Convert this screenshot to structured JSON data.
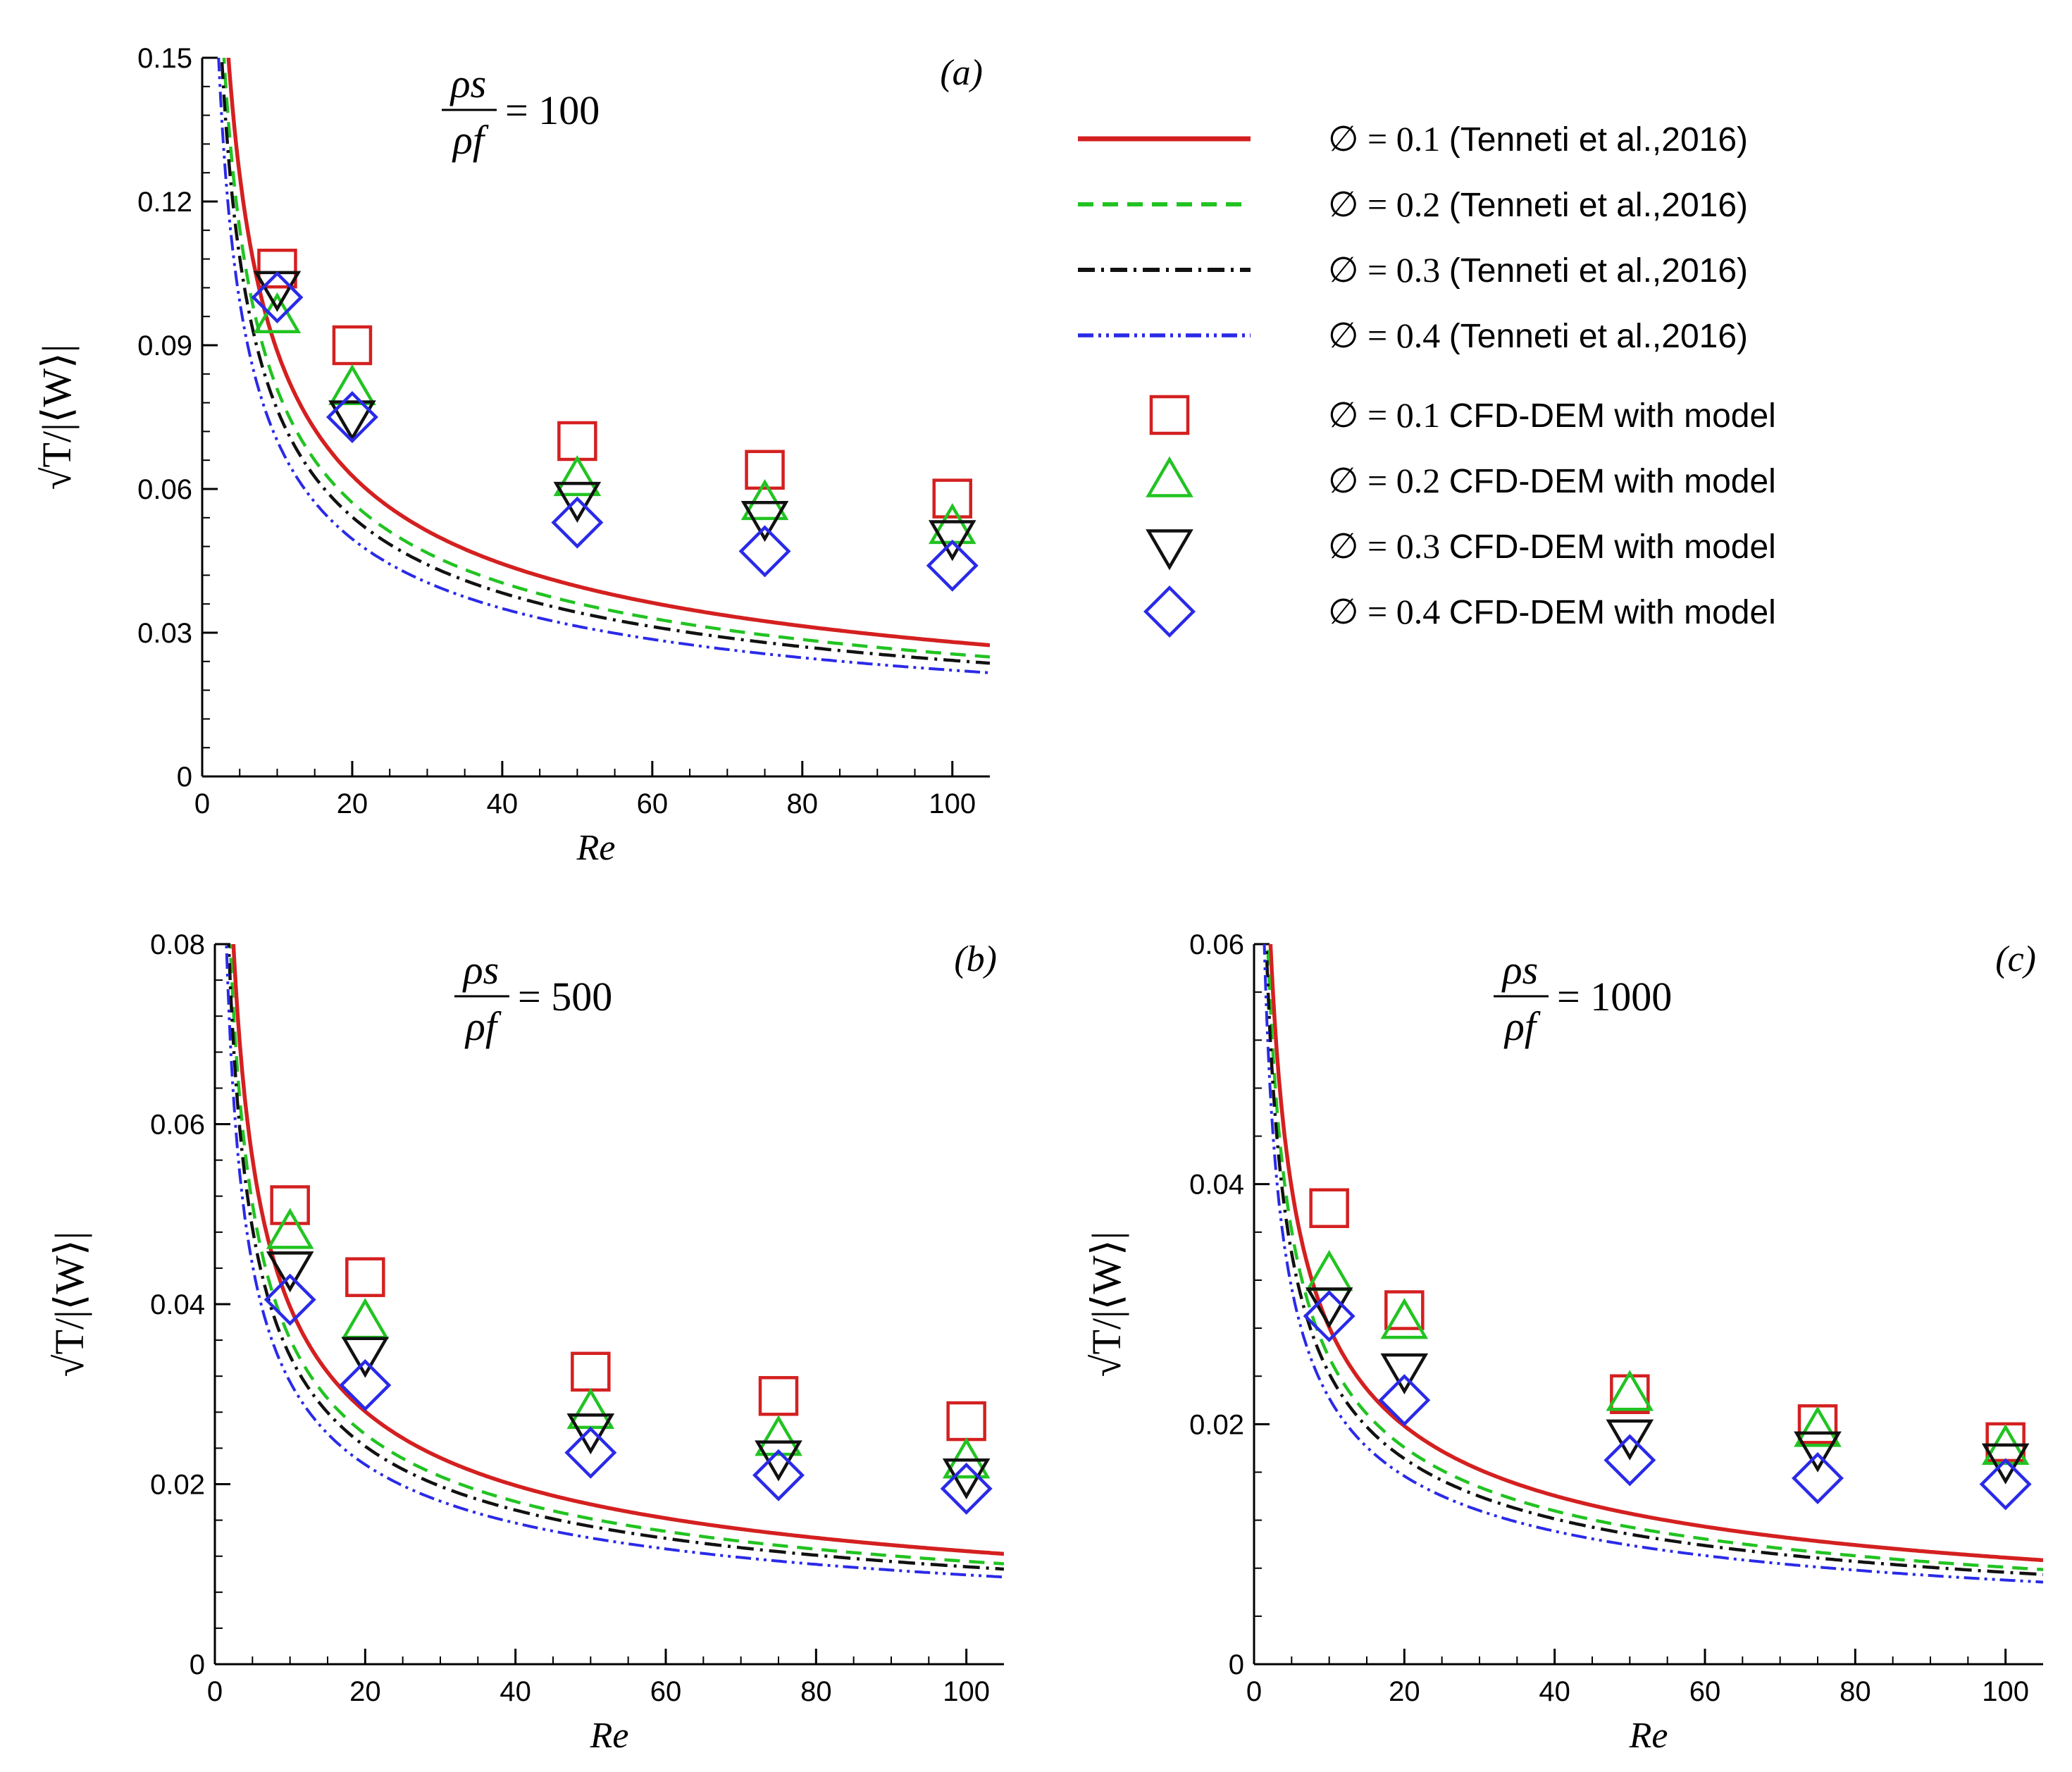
{
  "chart_data": [
    {
      "id": "a",
      "type": "line",
      "panel_label": "(a)",
      "density_ratio": {
        "numerator": "ρs",
        "denominator": "ρf",
        "value": "= 100"
      },
      "xlabel": "Re",
      "ylabel": "√T/|⟨W⟩|",
      "xlim": [
        0,
        105
      ],
      "ylim": [
        0,
        0.15
      ],
      "xticks": [
        "0",
        "20",
        "40",
        "60",
        "80",
        "100"
      ],
      "yticks": [
        "0",
        "0.03",
        "0.06",
        "0.09",
        "0.12",
        "0.15"
      ],
      "curves": [
        {
          "phi": 0.1,
          "coef": 0.2807,
          "offset": 0.0
        },
        {
          "phi": 0.2,
          "coef": 0.2556,
          "offset": 0.0
        },
        {
          "phi": 0.3,
          "coef": 0.2422,
          "offset": 0.0
        },
        {
          "phi": 0.4,
          "coef": 0.2217,
          "offset": 0.0
        }
      ],
      "x": [
        10,
        20,
        50,
        75,
        100
      ],
      "markers": [
        {
          "phi": 0.1,
          "values": [
            0.106,
            0.09,
            0.07,
            0.064,
            0.058
          ]
        },
        {
          "phi": 0.2,
          "values": [
            0.096,
            0.081,
            0.062,
            0.057,
            0.052
          ]
        },
        {
          "phi": 0.3,
          "values": [
            0.102,
            0.075,
            0.058,
            0.054,
            0.05
          ]
        },
        {
          "phi": 0.4,
          "values": [
            0.1,
            0.075,
            0.053,
            0.047,
            0.044
          ]
        }
      ]
    },
    {
      "id": "b",
      "type": "line",
      "panel_label": "(b)",
      "density_ratio": {
        "numerator": "ρs",
        "denominator": "ρf",
        "value": "= 500"
      },
      "xlabel": "Re",
      "ylabel": "√T/|⟨W⟩|",
      "xlim": [
        0,
        105
      ],
      "ylim": [
        0,
        0.08
      ],
      "xticks": [
        "0",
        "20",
        "40",
        "60",
        "80",
        "100"
      ],
      "yticks": [
        "0",
        "0.02",
        "0.04",
        "0.06",
        "0.08"
      ],
      "curves": [
        {
          "phi": 0.1,
          "coef": 0.1256,
          "offset": 0.0
        },
        {
          "phi": 0.2,
          "coef": 0.1143,
          "offset": 0.0
        },
        {
          "phi": 0.3,
          "coef": 0.1083,
          "offset": 0.0
        },
        {
          "phi": 0.4,
          "coef": 0.0992,
          "offset": 0.0
        }
      ],
      "x": [
        10,
        20,
        50,
        75,
        100
      ],
      "markers": [
        {
          "phi": 0.1,
          "values": [
            0.051,
            0.043,
            0.0325,
            0.0298,
            0.027
          ]
        },
        {
          "phi": 0.2,
          "values": [
            0.048,
            0.038,
            0.028,
            0.025,
            0.0225
          ]
        },
        {
          "phi": 0.3,
          "values": [
            0.044,
            0.0345,
            0.026,
            0.023,
            0.021
          ]
        },
        {
          "phi": 0.4,
          "values": [
            0.0405,
            0.031,
            0.0235,
            0.021,
            0.0195
          ]
        }
      ]
    },
    {
      "id": "c",
      "type": "line",
      "panel_label": "(c)",
      "density_ratio": {
        "numerator": "ρs",
        "denominator": "ρf",
        "value": "= 1000"
      },
      "xlabel": "Re",
      "ylabel": "√T/|⟨W⟩|",
      "xlim": [
        0,
        105
      ],
      "ylim": [
        0,
        0.06
      ],
      "xticks": [
        "0",
        "20",
        "40",
        "60",
        "80",
        "100"
      ],
      "yticks": [
        "0",
        "0.02",
        "0.04",
        "0.06"
      ],
      "curves": [
        {
          "phi": 0.1,
          "coef": 0.0888,
          "offset": 0.0
        },
        {
          "phi": 0.2,
          "coef": 0.0808,
          "offset": 0.0
        },
        {
          "phi": 0.3,
          "coef": 0.0766,
          "offset": 0.0
        },
        {
          "phi": 0.4,
          "coef": 0.0701,
          "offset": 0.0
        }
      ],
      "x": [
        10,
        20,
        50,
        75,
        100
      ],
      "markers": [
        {
          "phi": 0.1,
          "values": [
            0.038,
            0.0295,
            0.0225,
            0.02,
            0.0185
          ]
        },
        {
          "phi": 0.2,
          "values": [
            0.0325,
            0.0285,
            0.0225,
            0.0195,
            0.018
          ]
        },
        {
          "phi": 0.3,
          "values": [
            0.03,
            0.0245,
            0.019,
            0.018,
            0.017
          ]
        },
        {
          "phi": 0.4,
          "values": [
            0.029,
            0.022,
            0.017,
            0.0155,
            0.015
          ]
        }
      ]
    }
  ],
  "legend": {
    "placement": "top-right",
    "entries": [
      {
        "phi": "0.1",
        "label": "(Tenneti et al.,2016)",
        "kind": "line",
        "style": "solid",
        "color": "#d42020"
      },
      {
        "phi": "0.2",
        "label": "(Tenneti et al.,2016)",
        "kind": "line",
        "style": "dashed",
        "color": "#22c322"
      },
      {
        "phi": "0.3",
        "label": "(Tenneti et al.,2016)",
        "kind": "line",
        "style": "dashdot",
        "color": "#111111"
      },
      {
        "phi": "0.4",
        "label": "(Tenneti et al.,2016)",
        "kind": "line",
        "style": "dashdotdot",
        "color": "#2a2ae8"
      },
      {
        "phi": "0.1",
        "label": "CFD-DEM with model",
        "kind": "marker",
        "marker": "square",
        "color": "#d42020"
      },
      {
        "phi": "0.2",
        "label": "CFD-DEM with model",
        "kind": "marker",
        "marker": "triangle-up",
        "color": "#22c322"
      },
      {
        "phi": "0.3",
        "label": "CFD-DEM with model",
        "kind": "marker",
        "marker": "triangle-down",
        "color": "#111111"
      },
      {
        "phi": "0.4",
        "label": "CFD-DEM with model",
        "kind": "marker",
        "marker": "diamond",
        "color": "#2a2ae8"
      }
    ]
  },
  "colors": {
    "phi_0_1": "#d42020",
    "phi_0_2": "#22c322",
    "phi_0_3": "#111111",
    "phi_0_4": "#2a2ae8",
    "axis": "#000000"
  }
}
